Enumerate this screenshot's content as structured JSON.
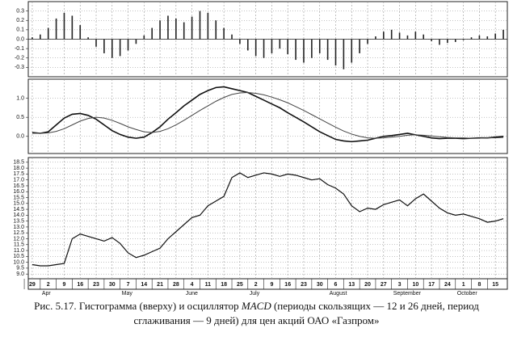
{
  "chart_data": [
    {
      "type": "bar",
      "color": "#222222",
      "ylim": [
        -0.4,
        0.4
      ],
      "yticks": [
        0.3,
        0.2,
        0.1,
        {
          "value": 0,
          "label": "0.0"
        },
        -0.1,
        -0.2,
        -0.3
      ],
      "grid": true,
      "values": [
        0.02,
        0.05,
        0.12,
        0.22,
        0.28,
        0.25,
        0.15,
        0.02,
        -0.08,
        -0.15,
        -0.2,
        -0.18,
        -0.12,
        -0.05,
        0.04,
        0.12,
        0.2,
        0.25,
        0.22,
        0.18,
        0.24,
        0.3,
        0.28,
        0.2,
        0.12,
        0.05,
        -0.05,
        -0.12,
        -0.18,
        -0.2,
        -0.15,
        -0.1,
        -0.16,
        -0.22,
        -0.25,
        -0.2,
        -0.15,
        -0.22,
        -0.28,
        -0.32,
        -0.25,
        -0.15,
        -0.05,
        0.03,
        0.08,
        0.1,
        0.07,
        0.04,
        0.08,
        0.05,
        -0.02,
        -0.06,
        -0.04,
        -0.03,
        -0.01,
        0.02,
        0.04,
        0.03,
        0.06,
        0.1
      ]
    },
    {
      "type": "line",
      "ylim": [
        -0.45,
        1.5
      ],
      "yticks": [
        {
          "value": 1,
          "label": "1.0"
        },
        0.5,
        {
          "value": 0,
          "label": "0.0"
        }
      ],
      "grid": true,
      "series": [
        {
          "color": "#111111",
          "values": [
            0.1,
            0.08,
            0.12,
            0.3,
            0.48,
            0.58,
            0.6,
            0.55,
            0.45,
            0.3,
            0.15,
            0.05,
            -0.02,
            -0.05,
            -0.02,
            0.1,
            0.25,
            0.45,
            0.62,
            0.8,
            0.95,
            1.1,
            1.2,
            1.28,
            1.3,
            1.25,
            1.2,
            1.15,
            1.05,
            0.95,
            0.85,
            0.75,
            0.62,
            0.5,
            0.38,
            0.25,
            0.12,
            0.02,
            -0.08,
            -0.12,
            -0.14,
            -0.12,
            -0.1,
            -0.05,
            0.0,
            0.02,
            0.05,
            0.08,
            0.04,
            0.0,
            -0.04,
            -0.06,
            -0.05,
            -0.05,
            -0.06,
            -0.05,
            -0.04,
            -0.04,
            -0.02,
            0.0
          ]
        },
        {
          "color": "#444444",
          "values": [
            0.08,
            0.08,
            0.09,
            0.13,
            0.2,
            0.3,
            0.4,
            0.47,
            0.5,
            0.48,
            0.42,
            0.34,
            0.25,
            0.18,
            0.12,
            0.1,
            0.13,
            0.2,
            0.3,
            0.42,
            0.55,
            0.68,
            0.8,
            0.92,
            1.02,
            1.1,
            1.14,
            1.15,
            1.13,
            1.09,
            1.03,
            0.96,
            0.88,
            0.78,
            0.68,
            0.57,
            0.46,
            0.35,
            0.24,
            0.14,
            0.06,
            0.0,
            -0.04,
            -0.05,
            -0.04,
            -0.02,
            0.0,
            0.03,
            0.04,
            0.03,
            0.01,
            -0.01,
            -0.03,
            -0.04,
            -0.04,
            -0.05,
            -0.05,
            -0.04,
            -0.04,
            -0.03
          ]
        }
      ]
    },
    {
      "type": "line",
      "color": "#111111",
      "ylim": [
        8.6,
        18.9
      ],
      "grid": true,
      "yticks": [
        18.5,
        {
          "value": 18,
          "label": "18.0"
        },
        17.5,
        {
          "value": 17,
          "label": "17.0"
        },
        16.5,
        {
          "value": 16,
          "label": "16.0"
        },
        15.5,
        {
          "value": 15,
          "label": "15.0"
        },
        14.5,
        {
          "value": 14,
          "label": "14.0"
        },
        13.5,
        {
          "value": 13,
          "label": "13.0"
        },
        12.5,
        {
          "value": 12,
          "label": "12.0"
        },
        11.5,
        {
          "value": 11,
          "label": "11.0"
        },
        10.5,
        {
          "value": 10,
          "label": "10.0"
        },
        9.5,
        {
          "value": 9,
          "label": "9.0"
        }
      ],
      "categories": [
        "29",
        null,
        "2",
        null,
        "9",
        null,
        "16",
        null,
        "23",
        null,
        "30",
        null,
        "7",
        null,
        "14",
        null,
        "21",
        null,
        "28",
        null,
        "4",
        null,
        "11",
        null,
        "18",
        null,
        "25",
        null,
        "2",
        null,
        "9",
        null,
        "16",
        null,
        "23",
        null,
        "30",
        null,
        "6",
        null,
        "13",
        null,
        "20",
        null,
        "27",
        null,
        "3",
        null,
        "10",
        null,
        "17",
        null,
        "24",
        null,
        "1",
        null,
        "8",
        null,
        "15",
        null
      ],
      "months": [
        null,
        null,
        "Apr",
        null,
        null,
        null,
        null,
        null,
        null,
        null,
        null,
        null,
        "May",
        null,
        null,
        null,
        null,
        null,
        null,
        null,
        "June",
        null,
        null,
        null,
        null,
        null,
        null,
        null,
        "July",
        null,
        null,
        null,
        null,
        null,
        null,
        null,
        null,
        null,
        "August",
        null,
        null,
        null,
        null,
        null,
        null,
        null,
        "September",
        null,
        null,
        null,
        null,
        null,
        null,
        null,
        "October",
        null,
        null,
        null,
        null,
        null
      ],
      "values": [
        9.8,
        9.7,
        9.7,
        9.8,
        9.9,
        12.0,
        12.4,
        12.2,
        12.0,
        11.8,
        12.1,
        11.6,
        10.8,
        10.4,
        10.6,
        10.9,
        11.2,
        12.0,
        12.6,
        13.2,
        13.8,
        14.0,
        14.8,
        15.2,
        15.6,
        17.2,
        17.6,
        17.2,
        17.4,
        17.6,
        17.5,
        17.3,
        17.5,
        17.4,
        17.2,
        17.0,
        17.1,
        16.6,
        16.3,
        15.8,
        14.8,
        14.3,
        14.6,
        14.5,
        14.9,
        15.1,
        15.3,
        14.8,
        15.4,
        15.8,
        15.2,
        14.6,
        14.2,
        14.0,
        14.1,
        13.9,
        13.7,
        13.4,
        13.5,
        13.7
      ]
    }
  ],
  "caption": {
    "line1_a": "Рис. 5.17. Гистограмма (вверху) и осциллятор ",
    "line1_b": "MACD",
    "line1_c": " (периоды скользящих — 12 и 26 дней, период",
    "line2": "сглаживания — 9 дней) для цен акций ОАО «Газпром»"
  }
}
